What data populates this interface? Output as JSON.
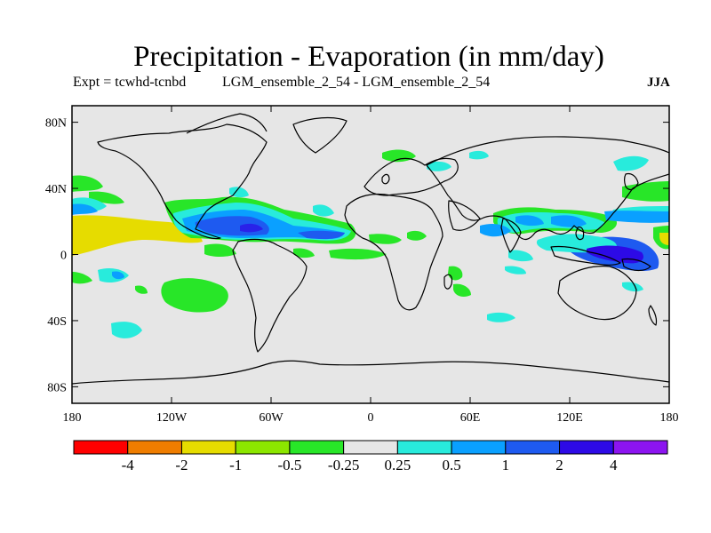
{
  "title": "Precipitation - Evaporation (in mm/day)",
  "subtitle_left": "Expt = tcwhd-tcnbd",
  "subtitle_middle": "LGM_ensemble_2_54 - LGM_ensemble_2_54",
  "season": "JJA",
  "lon_ticks": [
    "180",
    "120W",
    "60W",
    "0",
    "60E",
    "120E",
    "180"
  ],
  "lat_ticks": [
    "80N",
    "40N",
    "0",
    "40S",
    "80S"
  ],
  "colorbar": {
    "colors": [
      "#ff0000",
      "#ef7d00",
      "#e6dc00",
      "#8ce600",
      "#28e628",
      "#e6e6e6",
      "#28ebdc",
      "#0aa0ff",
      "#1e5af0",
      "#2d0ae6",
      "#8c14f0"
    ],
    "labels": [
      "-4",
      "-2",
      "-1",
      "-0.5",
      "-0.25",
      "0.25",
      "0.5",
      "1",
      "2",
      "4"
    ]
  },
  "colors": {
    "ocean_background": "#e6e6e6",
    "coast": "#000000"
  }
}
